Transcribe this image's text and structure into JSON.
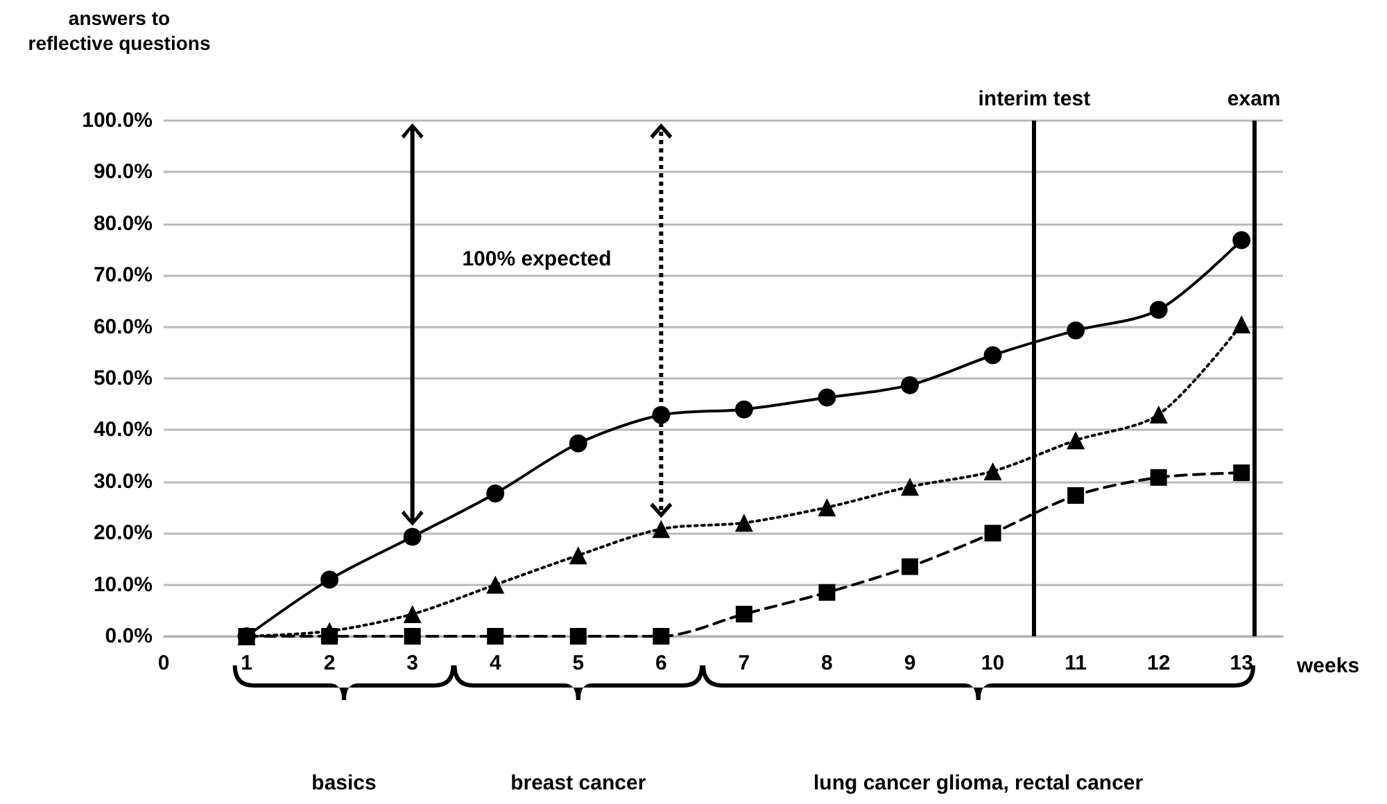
{
  "chart_data": {
    "type": "line",
    "ylabel": "answers to reflective questions",
    "xlabel": "weeks",
    "x": [
      1,
      2,
      3,
      4,
      5,
      6,
      7,
      8,
      9,
      10,
      11,
      12,
      13
    ],
    "series": [
      {
        "color": "#000000",
        "marker": "circle",
        "line_style": "solid",
        "values": [
          0,
          11,
          19.3,
          27.7,
          37.4,
          42.9,
          44,
          46.3,
          48.7,
          54.5,
          59.3,
          63.3,
          76.8
        ]
      },
      {
        "color": "#000000",
        "marker": "square",
        "line_style": "dashed",
        "values": [
          0,
          0,
          0,
          0,
          0,
          0,
          4.3,
          8.5,
          13.5,
          20,
          27.3,
          30.8,
          31.7
        ]
      },
      {
        "color": "#000000",
        "marker": "triangle",
        "line_style": "dotted",
        "values": [
          0,
          1,
          4.3,
          10,
          15.7,
          20.8,
          22,
          25,
          29,
          32,
          38,
          43,
          60.5
        ]
      }
    ],
    "xlim": [
      0,
      13.5
    ],
    "xticks": [
      0,
      1,
      2,
      3,
      4,
      5,
      6,
      7,
      8,
      9,
      10,
      11,
      12,
      13
    ],
    "ylim": [
      0,
      100
    ],
    "yticks": [
      {
        "value": 0,
        "label": "0.0%"
      },
      {
        "value": 10,
        "label": "10.0%"
      },
      {
        "value": 20,
        "label": "20.0%"
      },
      {
        "value": 30,
        "label": "30.0%"
      },
      {
        "value": 40,
        "label": "40.0%"
      },
      {
        "value": 50,
        "label": "50.0%"
      },
      {
        "value": 60,
        "label": "60.0%"
      },
      {
        "value": 70,
        "label": "70.0%"
      },
      {
        "value": 80,
        "label": "80.0%"
      },
      {
        "value": 90,
        "label": "90.0%"
      },
      {
        "value": 100,
        "label": "100.0%"
      }
    ],
    "ref_lines": [
      {
        "axis": "x",
        "value": 10.5,
        "label": "interim test",
        "color": "#000000"
      },
      {
        "axis": "x",
        "value": 13.15,
        "label": "exam",
        "color": "#000000"
      }
    ],
    "annotations": [
      "100% expected",
      "basics",
      "breast cancer",
      "lung cancer glioma, rectal cancer"
    ],
    "grid": "y"
  }
}
